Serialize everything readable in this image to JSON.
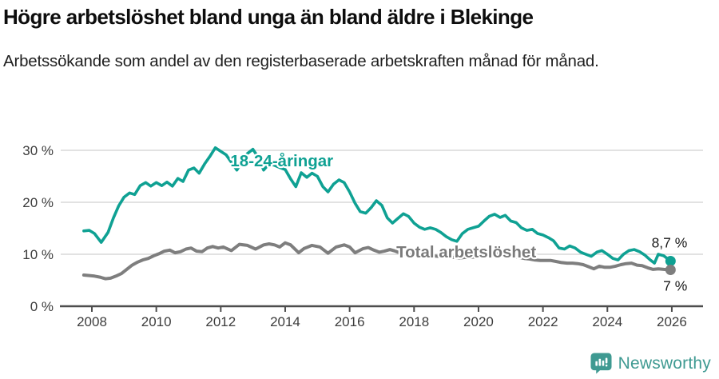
{
  "header": {
    "title": "Högre arbetslöshet bland unga än bland äldre i Blekinge",
    "subtitle": "Arbetssökande som andel av den registerbaserade arbetskraften månad för månad."
  },
  "footer": {
    "brand": "Newsworthy"
  },
  "colors": {
    "young_line": "#0FA193",
    "total_line": "#7E7E7E",
    "total_label": "#7A7A7A",
    "grid": "#D9D9D9",
    "axis": "#4D4D4D",
    "tick_text": "#3C3C3C",
    "annotation_text": "#1A1A1A",
    "logo_teal": "#3F9A92"
  },
  "chart_data": {
    "type": "line",
    "title": "Högre arbetslöshet bland unga än bland äldre i Blekinge",
    "subtitle": "Arbetssökande som andel av den registerbaserade arbetskraften månad för månad.",
    "unit": "%",
    "grid": "horizontal",
    "legend_position": "inline-labels",
    "x_axis": {
      "range": [
        2007.0,
        2026.95
      ],
      "ticks": [
        2008,
        2010,
        2012,
        2014,
        2016,
        2018,
        2020,
        2022,
        2024,
        2026
      ],
      "tick_labels": [
        "2008",
        "2010",
        "2012",
        "2014",
        "2016",
        "2018",
        "2020",
        "2022",
        "2024",
        "2026"
      ]
    },
    "y_axis": {
      "range": [
        0,
        32
      ],
      "ticks": [
        {
          "value": 0,
          "label": "0 %"
        },
        {
          "value": 10,
          "label": "10 %"
        },
        {
          "value": 20,
          "label": "20 %"
        },
        {
          "value": 30,
          "label": "30 %"
        }
      ]
    },
    "series": [
      {
        "name": "18-24-åringar",
        "color_key": "young_line",
        "end_label": "8,7 %",
        "end_value": 8.7,
        "label_anchor": {
          "year": 2012.3,
          "pct": 26.9
        },
        "points": [
          [
            2007.75,
            14.5
          ],
          [
            2007.92,
            14.6
          ],
          [
            2008.08,
            14.0
          ],
          [
            2008.29,
            12.3
          ],
          [
            2008.5,
            14.2
          ],
          [
            2008.67,
            17.0
          ],
          [
            2008.83,
            19.3
          ],
          [
            2009.0,
            21.0
          ],
          [
            2009.17,
            21.8
          ],
          [
            2009.33,
            21.5
          ],
          [
            2009.5,
            23.2
          ],
          [
            2009.67,
            23.8
          ],
          [
            2009.83,
            23.1
          ],
          [
            2010.0,
            23.8
          ],
          [
            2010.17,
            23.2
          ],
          [
            2010.33,
            23.9
          ],
          [
            2010.5,
            23.1
          ],
          [
            2010.67,
            24.6
          ],
          [
            2010.83,
            24.0
          ],
          [
            2011.0,
            26.2
          ],
          [
            2011.17,
            26.6
          ],
          [
            2011.33,
            25.6
          ],
          [
            2011.5,
            27.4
          ],
          [
            2011.67,
            28.9
          ],
          [
            2011.83,
            30.5
          ],
          [
            2012.0,
            29.8
          ],
          [
            2012.17,
            29.1
          ],
          [
            2012.33,
            27.7
          ],
          [
            2012.5,
            26.2
          ],
          [
            2012.67,
            27.9
          ],
          [
            2012.83,
            29.4
          ],
          [
            2013.0,
            30.2
          ],
          [
            2013.17,
            28.6
          ],
          [
            2013.33,
            26.2
          ],
          [
            2013.5,
            27.4
          ],
          [
            2013.67,
            27.1
          ],
          [
            2013.83,
            26.7
          ],
          [
            2014.0,
            26.3
          ],
          [
            2014.17,
            24.5
          ],
          [
            2014.33,
            23.0
          ],
          [
            2014.5,
            25.7
          ],
          [
            2014.67,
            24.8
          ],
          [
            2014.83,
            25.6
          ],
          [
            2015.0,
            25.0
          ],
          [
            2015.17,
            23.0
          ],
          [
            2015.33,
            22.0
          ],
          [
            2015.5,
            23.5
          ],
          [
            2015.67,
            24.3
          ],
          [
            2015.83,
            23.8
          ],
          [
            2016.0,
            22.0
          ],
          [
            2016.17,
            19.8
          ],
          [
            2016.33,
            18.2
          ],
          [
            2016.5,
            17.9
          ],
          [
            2016.67,
            19.0
          ],
          [
            2016.83,
            20.3
          ],
          [
            2017.0,
            19.4
          ],
          [
            2017.17,
            17.0
          ],
          [
            2017.33,
            16.0
          ],
          [
            2017.5,
            16.9
          ],
          [
            2017.67,
            17.8
          ],
          [
            2017.83,
            17.3
          ],
          [
            2018.0,
            16.0
          ],
          [
            2018.17,
            15.2
          ],
          [
            2018.33,
            14.8
          ],
          [
            2018.5,
            15.1
          ],
          [
            2018.67,
            14.8
          ],
          [
            2018.83,
            14.2
          ],
          [
            2019.0,
            13.4
          ],
          [
            2019.17,
            12.8
          ],
          [
            2019.33,
            12.5
          ],
          [
            2019.5,
            14.0
          ],
          [
            2019.67,
            14.8
          ],
          [
            2019.83,
            15.1
          ],
          [
            2020.0,
            15.4
          ],
          [
            2020.17,
            16.4
          ],
          [
            2020.33,
            17.3
          ],
          [
            2020.5,
            17.7
          ],
          [
            2020.67,
            17.1
          ],
          [
            2020.83,
            17.5
          ],
          [
            2021.0,
            16.4
          ],
          [
            2021.17,
            16.1
          ],
          [
            2021.33,
            15.1
          ],
          [
            2021.5,
            14.6
          ],
          [
            2021.67,
            14.8
          ],
          [
            2021.83,
            14.0
          ],
          [
            2022.0,
            13.7
          ],
          [
            2022.17,
            13.2
          ],
          [
            2022.33,
            12.6
          ],
          [
            2022.5,
            11.2
          ],
          [
            2022.67,
            11.0
          ],
          [
            2022.83,
            11.6
          ],
          [
            2023.0,
            11.2
          ],
          [
            2023.17,
            10.4
          ],
          [
            2023.33,
            10.0
          ],
          [
            2023.5,
            9.6
          ],
          [
            2023.67,
            10.4
          ],
          [
            2023.83,
            10.7
          ],
          [
            2024.0,
            10.0
          ],
          [
            2024.17,
            9.2
          ],
          [
            2024.33,
            8.9
          ],
          [
            2024.5,
            10.0
          ],
          [
            2024.67,
            10.7
          ],
          [
            2024.83,
            10.9
          ],
          [
            2025.0,
            10.5
          ],
          [
            2025.17,
            9.8
          ],
          [
            2025.33,
            8.9
          ],
          [
            2025.46,
            8.3
          ],
          [
            2025.58,
            10.0
          ],
          [
            2025.75,
            9.7
          ],
          [
            2025.96,
            8.7
          ]
        ]
      },
      {
        "name": "Total arbetslöshet",
        "color_key": "total_line",
        "end_label": "7 %",
        "end_value": 7.0,
        "label_anchor": {
          "year": 2017.45,
          "pct": 9.4
        },
        "points": [
          [
            2007.75,
            6.0
          ],
          [
            2007.92,
            5.9
          ],
          [
            2008.08,
            5.8
          ],
          [
            2008.25,
            5.6
          ],
          [
            2008.42,
            5.3
          ],
          [
            2008.58,
            5.4
          ],
          [
            2008.75,
            5.8
          ],
          [
            2008.92,
            6.3
          ],
          [
            2009.08,
            7.1
          ],
          [
            2009.25,
            7.9
          ],
          [
            2009.42,
            8.5
          ],
          [
            2009.58,
            8.9
          ],
          [
            2009.75,
            9.2
          ],
          [
            2009.92,
            9.7
          ],
          [
            2010.08,
            10.1
          ],
          [
            2010.25,
            10.6
          ],
          [
            2010.42,
            10.8
          ],
          [
            2010.58,
            10.3
          ],
          [
            2010.75,
            10.5
          ],
          [
            2010.92,
            11.0
          ],
          [
            2011.08,
            11.2
          ],
          [
            2011.25,
            10.6
          ],
          [
            2011.42,
            10.5
          ],
          [
            2011.58,
            11.2
          ],
          [
            2011.75,
            11.5
          ],
          [
            2011.92,
            11.2
          ],
          [
            2012.08,
            11.4
          ],
          [
            2012.33,
            10.7
          ],
          [
            2012.58,
            11.9
          ],
          [
            2012.83,
            11.7
          ],
          [
            2013.08,
            11.0
          ],
          [
            2013.33,
            11.8
          ],
          [
            2013.5,
            12.0
          ],
          [
            2013.67,
            11.8
          ],
          [
            2013.83,
            11.4
          ],
          [
            2014.0,
            12.2
          ],
          [
            2014.17,
            11.8
          ],
          [
            2014.42,
            10.3
          ],
          [
            2014.58,
            11.1
          ],
          [
            2014.83,
            11.7
          ],
          [
            2015.08,
            11.4
          ],
          [
            2015.33,
            10.2
          ],
          [
            2015.58,
            11.4
          ],
          [
            2015.83,
            11.8
          ],
          [
            2016.0,
            11.4
          ],
          [
            2016.17,
            10.3
          ],
          [
            2016.42,
            11.1
          ],
          [
            2016.58,
            11.3
          ],
          [
            2016.75,
            10.8
          ],
          [
            2016.92,
            10.4
          ],
          [
            2017.08,
            10.6
          ],
          [
            2017.25,
            10.9
          ],
          [
            2017.42,
            10.6
          ],
          [
            2017.58,
            10.2
          ],
          [
            2017.75,
            10.0
          ],
          [
            2017.92,
            9.9
          ],
          [
            2018.08,
            10.0
          ],
          [
            2018.25,
            10.1
          ],
          [
            2018.42,
            9.9
          ],
          [
            2018.58,
            9.7
          ],
          [
            2018.75,
            9.6
          ],
          [
            2018.92,
            9.5
          ],
          [
            2019.08,
            9.5
          ],
          [
            2019.25,
            9.4
          ],
          [
            2019.42,
            9.3
          ],
          [
            2019.58,
            9.4
          ],
          [
            2019.75,
            9.4
          ],
          [
            2019.92,
            9.5
          ],
          [
            2020.08,
            9.7
          ],
          [
            2020.25,
            10.0
          ],
          [
            2020.42,
            10.2
          ],
          [
            2020.58,
            10.1
          ],
          [
            2020.75,
            9.9
          ],
          [
            2020.92,
            9.7
          ],
          [
            2021.08,
            9.6
          ],
          [
            2021.25,
            9.4
          ],
          [
            2021.42,
            9.2
          ],
          [
            2021.58,
            9.1
          ],
          [
            2021.75,
            8.9
          ],
          [
            2021.92,
            8.8
          ],
          [
            2022.08,
            8.8
          ],
          [
            2022.25,
            8.8
          ],
          [
            2022.42,
            8.6
          ],
          [
            2022.58,
            8.4
          ],
          [
            2022.75,
            8.3
          ],
          [
            2022.92,
            8.3
          ],
          [
            2023.08,
            8.2
          ],
          [
            2023.25,
            8.0
          ],
          [
            2023.42,
            7.6
          ],
          [
            2023.58,
            7.2
          ],
          [
            2023.75,
            7.7
          ],
          [
            2023.92,
            7.5
          ],
          [
            2024.08,
            7.5
          ],
          [
            2024.25,
            7.7
          ],
          [
            2024.42,
            8.0
          ],
          [
            2024.58,
            8.2
          ],
          [
            2024.75,
            8.3
          ],
          [
            2024.92,
            7.9
          ],
          [
            2025.08,
            7.8
          ],
          [
            2025.25,
            7.4
          ],
          [
            2025.42,
            7.1
          ],
          [
            2025.58,
            7.2
          ],
          [
            2025.75,
            7.1
          ],
          [
            2025.96,
            7.0
          ]
        ]
      }
    ]
  }
}
